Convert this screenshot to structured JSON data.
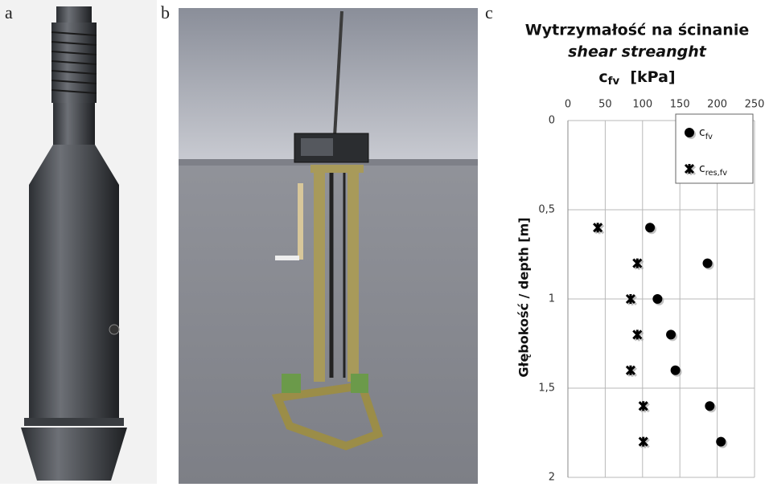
{
  "panels": [
    "a",
    "b",
    "c"
  ],
  "chart_data": {
    "type": "scatter",
    "title": "Wytrzymałość na ścinanie",
    "subtitle": "shear streanght",
    "x_label": "c fv [kPa]",
    "y_label": "Głębokość / depth [m]",
    "xlim": [
      0,
      250
    ],
    "xticks": [
      0,
      50,
      100,
      150,
      200,
      250
    ],
    "ylim": [
      0,
      2
    ],
    "y_inverted": true,
    "yticks": [
      0,
      {
        "value": 0.5,
        "label": "0,5"
      },
      1,
      {
        "value": 1.5,
        "label": "1,5"
      },
      2
    ],
    "grid": true,
    "legend": "upper right",
    "series": [
      {
        "name": "c fv",
        "marker": "circle",
        "color": "#000000",
        "x": [
          110,
          187,
          120,
          138,
          144,
          190,
          205
        ],
        "values": [
          0.6,
          0.8,
          1.0,
          1.2,
          1.4,
          1.6,
          1.8
        ]
      },
      {
        "name": "c res,fv",
        "marker": "star",
        "color": "#000000",
        "x": [
          40,
          93,
          84,
          93,
          84,
          101,
          101
        ],
        "values": [
          0.6,
          0.8,
          1.0,
          1.2,
          1.4,
          1.6,
          1.8
        ]
      }
    ]
  }
}
